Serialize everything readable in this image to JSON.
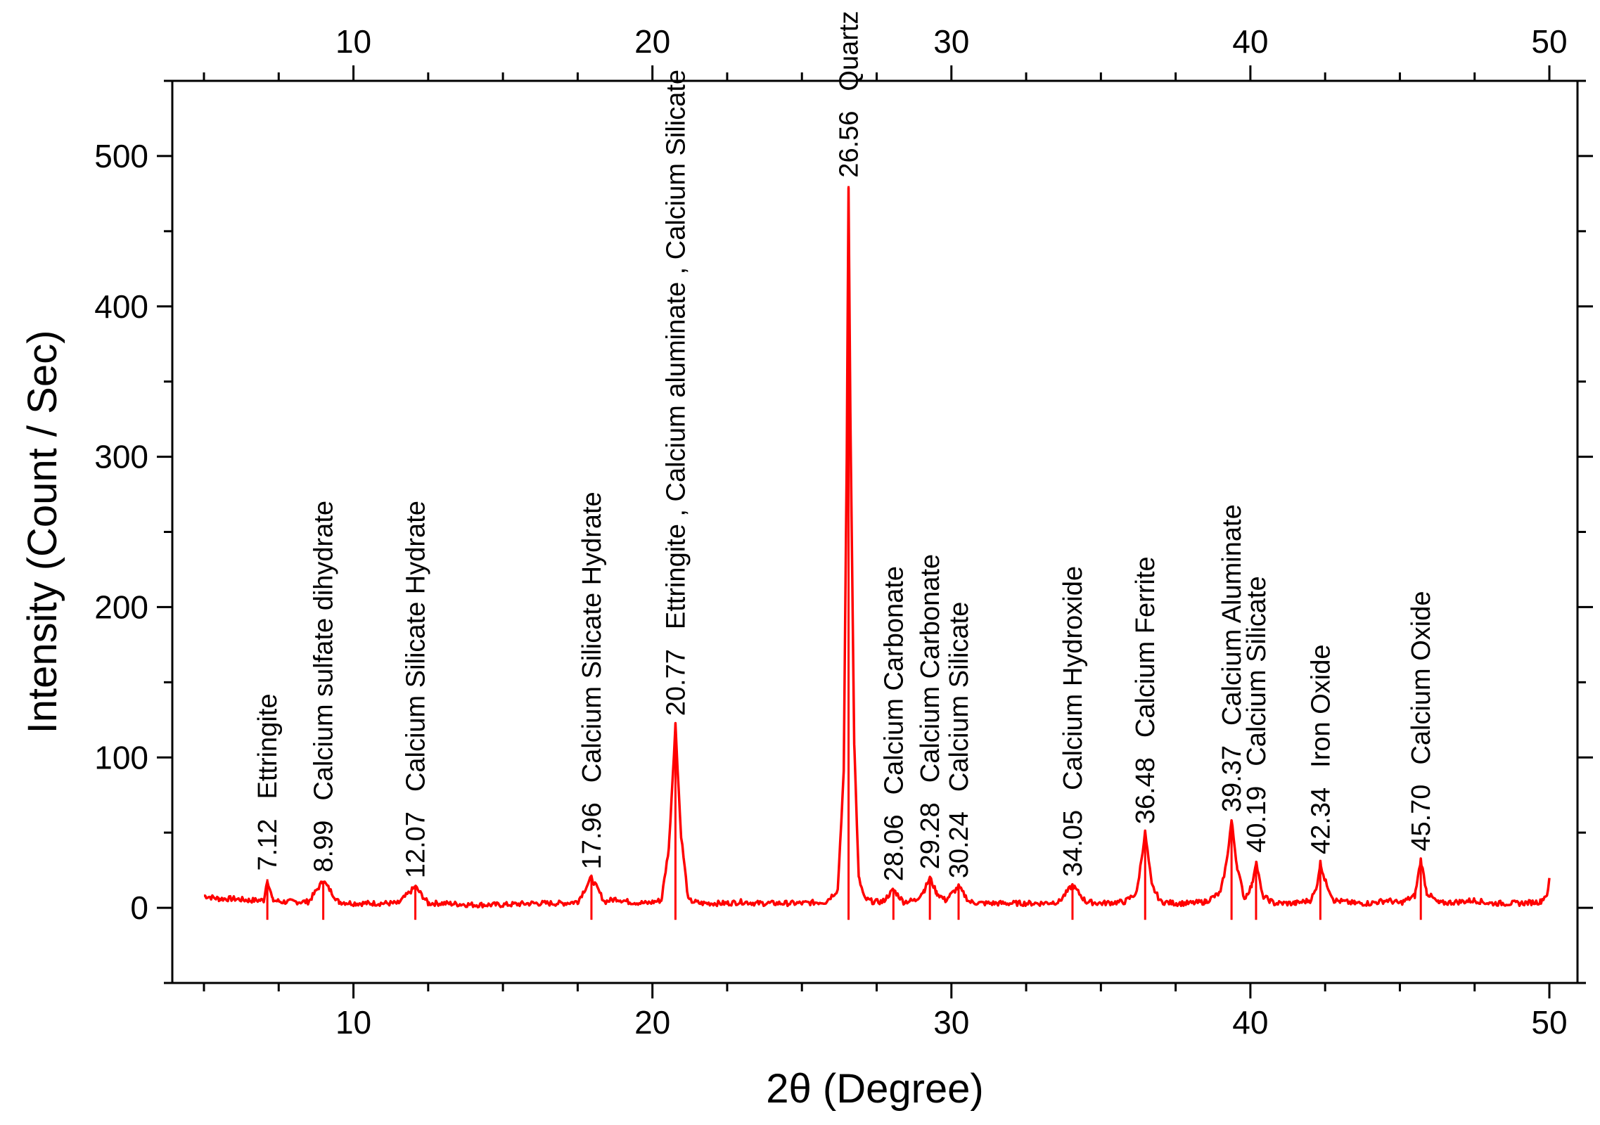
{
  "chart_data": {
    "type": "line",
    "xlabel": "2θ (Degree)",
    "ylabel": "Intensity (Count / Sec)",
    "xlim": [
      4,
      51
    ],
    "ylim": [
      -50,
      550
    ],
    "x_ticks": [
      10,
      20,
      30,
      40,
      50
    ],
    "y_ticks": [
      0,
      100,
      200,
      300,
      400,
      500
    ],
    "top_axis_ticks": [
      10,
      20,
      30,
      40,
      50
    ],
    "grid": false,
    "line_color": "#ff0000",
    "baseline": 3,
    "peaks": [
      {
        "x": 7.12,
        "y": 19,
        "label": "7.12",
        "phase": "Ettringite"
      },
      {
        "x": 8.99,
        "y": 18,
        "label": "8.99",
        "phase": "Calcium sulfate dihydrate"
      },
      {
        "x": 12.07,
        "y": 14,
        "label": "12.07",
        "phase": "Calcium Silicate Hydrate"
      },
      {
        "x": 17.96,
        "y": 20,
        "label": "17.96",
        "phase": "Calcium Silicate Hydrate"
      },
      {
        "x": 20.77,
        "y": 122,
        "label": "20.77",
        "phase": "Ettringite , Calcium aluminate , Calcium Silicate"
      },
      {
        "x": 26.56,
        "y": 480,
        "label": "26.56",
        "phase": "Quartz"
      },
      {
        "x": 28.06,
        "y": 12,
        "label": "28.06",
        "phase": "Calcium Carbonate"
      },
      {
        "x": 29.28,
        "y": 20,
        "label": "29.28",
        "phase": "Calcium Carbonate"
      },
      {
        "x": 30.24,
        "y": 14,
        "label": "30.24",
        "phase": "Calcium Silicate"
      },
      {
        "x": 34.05,
        "y": 15,
        "label": "34.05",
        "phase": "Calcium Hydroxide"
      },
      {
        "x": 36.48,
        "y": 50,
        "label": "36.48",
        "phase": "Calcium Ferrite"
      },
      {
        "x": 39.37,
        "y": 58,
        "label": "39.37",
        "phase": "Calcium Aluminate"
      },
      {
        "x": 40.19,
        "y": 31,
        "label": "40.19",
        "phase": "Calcium Silicate"
      },
      {
        "x": 42.34,
        "y": 30,
        "label": "42.34",
        "phase": "Iron Oxide"
      },
      {
        "x": 45.7,
        "y": 32,
        "label": "45.70",
        "phase": "Calcium Oxide"
      }
    ],
    "series": [
      {
        "x": [
          5.0,
          5.5,
          6.0,
          6.5,
          7.0,
          7.12,
          7.3,
          7.6,
          8.0,
          8.5,
          8.99,
          9.5,
          10.0,
          10.5,
          11.0,
          11.5,
          12.07,
          12.5,
          13.0,
          14.0,
          15.0,
          16.0,
          17.0,
          17.5,
          17.96,
          18.4,
          18.8,
          19.2,
          19.8,
          20.3,
          20.55,
          20.77,
          20.95,
          21.2,
          21.6,
          22.0,
          22.5,
          23.0,
          23.5,
          24.0,
          25.0,
          25.8,
          26.2,
          26.4,
          26.5,
          26.56,
          26.62,
          26.75,
          26.9,
          27.1,
          27.4,
          27.7,
          28.06,
          28.4,
          28.8,
          29.1,
          29.28,
          29.5,
          29.8,
          30.24,
          30.6,
          31.0,
          32.0,
          33.0,
          33.6,
          34.05,
          34.5,
          35.0,
          35.8,
          36.2,
          36.48,
          36.7,
          37.0,
          37.5,
          38.0,
          38.5,
          39.0,
          39.2,
          39.37,
          39.55,
          39.8,
          40.05,
          40.19,
          40.4,
          40.8,
          41.5,
          42.0,
          42.2,
          42.34,
          42.5,
          42.8,
          43.5,
          44.0,
          44.6,
          45.0,
          45.5,
          45.7,
          45.9,
          46.3,
          47.0,
          47.5,
          48.0,
          49.0,
          49.7,
          49.95,
          50.0
        ],
        "y": [
          8,
          6,
          6,
          5,
          5,
          19,
          5,
          4,
          4,
          4,
          18,
          4,
          3,
          3,
          3,
          3,
          14,
          3,
          3,
          2,
          2,
          3,
          3,
          4,
          20,
          4,
          6,
          4,
          3,
          5,
          40,
          122,
          50,
          5,
          3,
          3,
          3,
          4,
          3,
          3,
          3,
          4,
          12,
          90,
          300,
          480,
          330,
          110,
          20,
          6,
          4,
          4,
          12,
          4,
          5,
          12,
          20,
          10,
          5,
          14,
          4,
          3,
          3,
          3,
          4,
          15,
          4,
          3,
          4,
          10,
          50,
          15,
          4,
          3,
          3,
          4,
          10,
          30,
          58,
          28,
          6,
          15,
          31,
          8,
          3,
          3,
          5,
          12,
          30,
          18,
          5,
          3,
          3,
          5,
          3,
          8,
          32,
          10,
          3,
          4,
          5,
          3,
          3,
          4,
          10,
          20
        ]
      }
    ]
  }
}
